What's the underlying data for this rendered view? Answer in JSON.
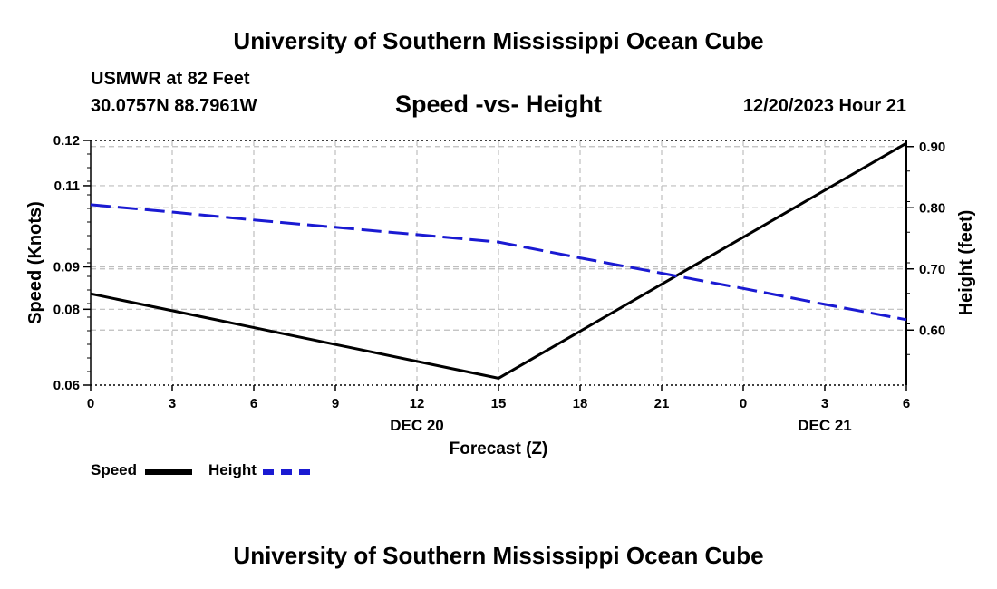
{
  "header": {
    "title": "University of Southern Mississippi Ocean Cube",
    "station": "USMWR at 82 Feet",
    "coordinates": "30.0757N  88.7961W",
    "subtitle": "Speed -vs- Height",
    "datetime": "12/20/2023 Hour 21"
  },
  "footer": {
    "title": "University of Southern Mississippi Ocean Cube"
  },
  "colors": {
    "speed": "#000000",
    "height": "#1a1ad2",
    "grid": "#bdbdbd"
  },
  "chart_data": {
    "type": "line",
    "title": "Speed -vs- Height",
    "xlabel": "Forecast (Z)",
    "x_tick_labels": [
      "0",
      "3",
      "6",
      "9",
      "12",
      "15",
      "18",
      "21",
      "0",
      "3",
      "6"
    ],
    "x_date_labels": [
      {
        "at_hour": 12,
        "label": "DEC 20"
      },
      {
        "at_hour": 27,
        "label": "DEC 21"
      }
    ],
    "xlim": [
      0,
      30
    ],
    "y_left": {
      "label": "Speed (Knots)",
      "ylim": [
        0.06,
        0.12
      ],
      "tick_labels": [
        "0.06",
        "0.08",
        "0.09",
        "0.11",
        "0.12"
      ],
      "tick_values": [
        0.06,
        0.0786,
        0.089,
        0.1089,
        0.12
      ]
    },
    "y_right": {
      "label": "Height (feet)",
      "ylim": [
        0.51,
        0.91
      ],
      "tick_labels": [
        "0.60",
        "0.70",
        "0.80",
        "0.90"
      ],
      "tick_values": [
        0.6,
        0.7,
        0.8,
        0.9
      ]
    },
    "series": [
      {
        "name": "Speed",
        "axis": "left",
        "style": "solid",
        "x": [
          0,
          15,
          30
        ],
        "values": [
          0.0824,
          0.0617,
          0.1193
        ]
      },
      {
        "name": "Height",
        "axis": "right",
        "style": "dashed",
        "x": [
          0,
          3,
          6,
          9,
          12,
          15,
          18,
          21,
          24,
          27,
          30
        ],
        "values": [
          0.805,
          0.793,
          0.78,
          0.768,
          0.756,
          0.744,
          0.718,
          0.693,
          0.668,
          0.642,
          0.617
        ]
      }
    ],
    "legend": [
      "Speed",
      "Height"
    ],
    "grid": true
  }
}
